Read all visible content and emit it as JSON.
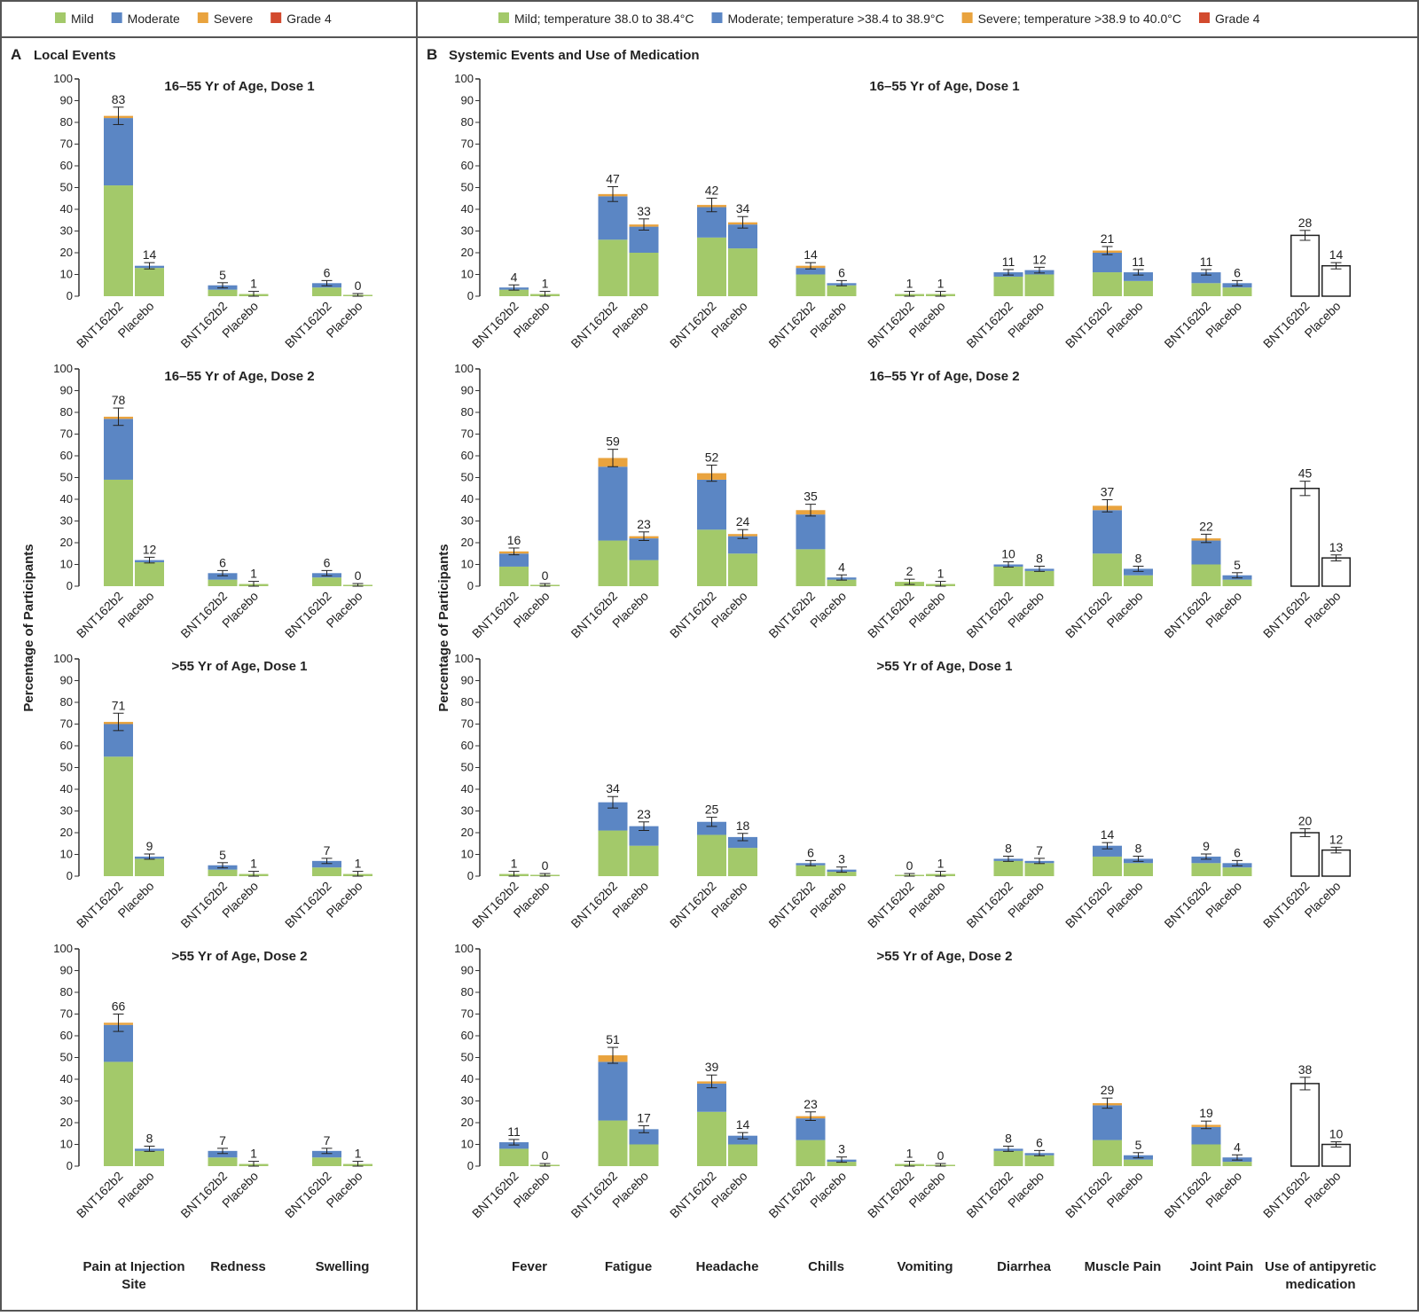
{
  "legend_a": [
    {
      "label": "Mild",
      "color": "#a3c96a"
    },
    {
      "label": "Moderate",
      "color": "#5b86c4"
    },
    {
      "label": "Severe",
      "color": "#e9a33e"
    },
    {
      "label": "Grade 4",
      "color": "#d24a2e"
    }
  ],
  "legend_b": [
    {
      "label": "Mild; temperature 38.0 to 38.4°C",
      "color": "#a3c96a"
    },
    {
      "label": "Moderate; temperature >38.4 to 38.9°C",
      "color": "#5b86c4"
    },
    {
      "label": "Severe; temperature >38.9 to 40.0°C",
      "color": "#e9a33e"
    },
    {
      "label": "Grade 4",
      "color": "#d24a2e"
    }
  ],
  "panel_a": {
    "letter": "A",
    "title": "Local Events",
    "ylabel": "Percentage of Participants",
    "categories": [
      "Pain at Injection Site",
      "Redness",
      "Swelling"
    ]
  },
  "panel_b": {
    "letter": "B",
    "title": "Systemic Events and Use of Medication",
    "ylabel": "Percentage of Participants",
    "categories": [
      "Fever",
      "Fatigue",
      "Headache",
      "Chills",
      "Vomiting",
      "Diarrhea",
      "Muscle Pain",
      "Joint Pain",
      "Use of antipyretic medication"
    ]
  },
  "groups": [
    "BNT162b2",
    "Placebo"
  ],
  "chart_data": [
    {
      "panel": "A",
      "type": "bar",
      "stacked": true,
      "title": "16–55 Yr of Age, Dose 1",
      "ylim": [
        0,
        100
      ],
      "yticks": [
        0,
        10,
        20,
        30,
        40,
        50,
        60,
        70,
        80,
        90,
        100
      ],
      "stack_order": [
        "Mild",
        "Moderate",
        "Severe",
        "Grade 4"
      ],
      "stacks": [
        [
          [
            51,
            31,
            1,
            0
          ],
          [
            13,
            1,
            0,
            0
          ]
        ],
        [
          [
            3,
            2,
            0,
            0
          ],
          [
            1,
            0,
            0,
            0
          ]
        ],
        [
          [
            4,
            2,
            0,
            0
          ],
          [
            0,
            0,
            0,
            0
          ]
        ]
      ],
      "totals": [
        [
          83,
          14
        ],
        [
          5,
          1
        ],
        [
          6,
          0
        ]
      ]
    },
    {
      "panel": "A",
      "type": "bar",
      "stacked": true,
      "title": "16–55 Yr of Age, Dose 2",
      "ylim": [
        0,
        100
      ],
      "yticks": [
        0,
        10,
        20,
        30,
        40,
        50,
        60,
        70,
        80,
        90,
        100
      ],
      "stack_order": [
        "Mild",
        "Moderate",
        "Severe",
        "Grade 4"
      ],
      "stacks": [
        [
          [
            49,
            28,
            1,
            0
          ],
          [
            11,
            1,
            0,
            0
          ]
        ],
        [
          [
            3,
            3,
            0,
            0
          ],
          [
            1,
            0,
            0,
            0
          ]
        ],
        [
          [
            4,
            2,
            0,
            0
          ],
          [
            0,
            0,
            0,
            0
          ]
        ]
      ],
      "totals": [
        [
          78,
          12
        ],
        [
          6,
          1
        ],
        [
          6,
          0
        ]
      ]
    },
    {
      "panel": "A",
      "type": "bar",
      "stacked": true,
      "title": ">55 Yr of Age, Dose 1",
      "ylim": [
        0,
        100
      ],
      "yticks": [
        0,
        10,
        20,
        30,
        40,
        50,
        60,
        70,
        80,
        90,
        100
      ],
      "stack_order": [
        "Mild",
        "Moderate",
        "Severe",
        "Grade 4"
      ],
      "stacks": [
        [
          [
            55,
            15,
            1,
            0
          ],
          [
            8,
            1,
            0,
            0
          ]
        ],
        [
          [
            3,
            2,
            0,
            0
          ],
          [
            1,
            0,
            0,
            0
          ]
        ],
        [
          [
            4,
            3,
            0,
            0
          ],
          [
            1,
            0,
            0,
            0
          ]
        ]
      ],
      "totals": [
        [
          71,
          9
        ],
        [
          5,
          1
        ],
        [
          7,
          1
        ]
      ]
    },
    {
      "panel": "A",
      "type": "bar",
      "stacked": true,
      "title": ">55 Yr of Age, Dose 2",
      "ylim": [
        0,
        100
      ],
      "yticks": [
        0,
        10,
        20,
        30,
        40,
        50,
        60,
        70,
        80,
        90,
        100
      ],
      "stack_order": [
        "Mild",
        "Moderate",
        "Severe",
        "Grade 4"
      ],
      "stacks": [
        [
          [
            48,
            17,
            1,
            0
          ],
          [
            7,
            1,
            0,
            0
          ]
        ],
        [
          [
            4,
            3,
            0,
            0
          ],
          [
            1,
            0,
            0,
            0
          ]
        ],
        [
          [
            4,
            3,
            0,
            0
          ],
          [
            1,
            0,
            0,
            0
          ]
        ]
      ],
      "totals": [
        [
          66,
          8
        ],
        [
          7,
          1
        ],
        [
          7,
          1
        ]
      ]
    },
    {
      "panel": "B",
      "type": "bar",
      "stacked": true,
      "title": "16–55 Yr of Age, Dose 1",
      "ylim": [
        0,
        100
      ],
      "yticks": [
        0,
        10,
        20,
        30,
        40,
        50,
        60,
        70,
        80,
        90,
        100
      ],
      "stack_order": [
        "Mild",
        "Moderate",
        "Severe",
        "Grade 4"
      ],
      "stacks": [
        [
          [
            3,
            1,
            0,
            0
          ],
          [
            1,
            0,
            0,
            0
          ]
        ],
        [
          [
            26,
            20,
            1,
            0
          ],
          [
            20,
            12,
            1,
            0
          ]
        ],
        [
          [
            27,
            14,
            1,
            0
          ],
          [
            22,
            11,
            1,
            0
          ]
        ],
        [
          [
            10,
            3,
            1,
            0
          ],
          [
            5,
            1,
            0,
            0
          ]
        ],
        [
          [
            1,
            0,
            0,
            0
          ],
          [
            1,
            0,
            0,
            0
          ]
        ],
        [
          [
            9,
            2,
            0,
            0
          ],
          [
            10,
            2,
            0,
            0
          ]
        ],
        [
          [
            11,
            9,
            1,
            0
          ],
          [
            7,
            4,
            0,
            0
          ]
        ],
        [
          [
            6,
            5,
            0,
            0
          ],
          [
            4,
            2,
            0,
            0
          ]
        ],
        null
      ],
      "totals": [
        [
          4,
          1
        ],
        [
          47,
          33
        ],
        [
          42,
          34
        ],
        [
          14,
          6
        ],
        [
          1,
          1
        ],
        [
          11,
          12
        ],
        [
          21,
          11
        ],
        [
          11,
          6
        ],
        [
          28,
          14
        ]
      ]
    },
    {
      "panel": "B",
      "type": "bar",
      "stacked": true,
      "title": "16–55 Yr of Age, Dose 2",
      "ylim": [
        0,
        100
      ],
      "yticks": [
        0,
        10,
        20,
        30,
        40,
        50,
        60,
        70,
        80,
        90,
        100
      ],
      "stack_order": [
        "Mild",
        "Moderate",
        "Severe",
        "Grade 4"
      ],
      "stacks": [
        [
          [
            9,
            6,
            1,
            0
          ],
          [
            0,
            0,
            0,
            0
          ]
        ],
        [
          [
            21,
            34,
            4,
            0
          ],
          [
            12,
            10,
            1,
            0
          ]
        ],
        [
          [
            26,
            23,
            3,
            0
          ],
          [
            15,
            8,
            1,
            0
          ]
        ],
        [
          [
            17,
            16,
            2,
            0
          ],
          [
            3,
            1,
            0,
            0
          ]
        ],
        [
          [
            2,
            0,
            0,
            0
          ],
          [
            1,
            0,
            0,
            0
          ]
        ],
        [
          [
            9,
            1,
            0,
            0
          ],
          [
            7,
            1,
            0,
            0
          ]
        ],
        [
          [
            15,
            20,
            2,
            0
          ],
          [
            5,
            3,
            0,
            0
          ]
        ],
        [
          [
            10,
            11,
            1,
            0
          ],
          [
            3,
            2,
            0,
            0
          ]
        ],
        null
      ],
      "totals": [
        [
          16,
          0
        ],
        [
          59,
          23
        ],
        [
          52,
          24
        ],
        [
          35,
          4
        ],
        [
          2,
          1
        ],
        [
          10,
          8
        ],
        [
          37,
          8
        ],
        [
          22,
          5
        ],
        [
          45,
          13
        ]
      ]
    },
    {
      "panel": "B",
      "type": "bar",
      "stacked": true,
      "title": ">55 Yr of Age, Dose 1",
      "ylim": [
        0,
        100
      ],
      "yticks": [
        0,
        10,
        20,
        30,
        40,
        50,
        60,
        70,
        80,
        90,
        100
      ],
      "stack_order": [
        "Mild",
        "Moderate",
        "Severe",
        "Grade 4"
      ],
      "stacks": [
        [
          [
            1,
            0,
            0,
            0
          ],
          [
            0,
            0,
            0,
            0
          ]
        ],
        [
          [
            21,
            13,
            0,
            0
          ],
          [
            14,
            9,
            0,
            0
          ]
        ],
        [
          [
            19,
            6,
            0,
            0
          ],
          [
            13,
            5,
            0,
            0
          ]
        ],
        [
          [
            5,
            1,
            0,
            0
          ],
          [
            2,
            1,
            0,
            0
          ]
        ],
        [
          [
            0,
            0,
            0,
            0
          ],
          [
            1,
            0,
            0,
            0
          ]
        ],
        [
          [
            7,
            1,
            0,
            0
          ],
          [
            6,
            1,
            0,
            0
          ]
        ],
        [
          [
            9,
            5,
            0,
            0
          ],
          [
            6,
            2,
            0,
            0
          ]
        ],
        [
          [
            6,
            3,
            0,
            0
          ],
          [
            4,
            2,
            0,
            0
          ]
        ],
        null
      ],
      "totals": [
        [
          1,
          0
        ],
        [
          34,
          23
        ],
        [
          25,
          18
        ],
        [
          6,
          3
        ],
        [
          0,
          1
        ],
        [
          8,
          7
        ],
        [
          14,
          8
        ],
        [
          9,
          6
        ],
        [
          20,
          12
        ]
      ]
    },
    {
      "panel": "B",
      "type": "bar",
      "stacked": true,
      "title": ">55 Yr of Age, Dose 2",
      "ylim": [
        0,
        100
      ],
      "yticks": [
        0,
        10,
        20,
        30,
        40,
        50,
        60,
        70,
        80,
        90,
        100
      ],
      "stack_order": [
        "Mild",
        "Moderate",
        "Severe",
        "Grade 4"
      ],
      "stacks": [
        [
          [
            8,
            3,
            0,
            0
          ],
          [
            0,
            0,
            0,
            0
          ]
        ],
        [
          [
            21,
            27,
            3,
            0
          ],
          [
            10,
            7,
            0,
            0
          ]
        ],
        [
          [
            25,
            13,
            1,
            0
          ],
          [
            10,
            4,
            0,
            0
          ]
        ],
        [
          [
            12,
            10,
            1,
            0
          ],
          [
            2,
            1,
            0,
            0
          ]
        ],
        [
          [
            1,
            0,
            0,
            0
          ],
          [
            0,
            0,
            0,
            0
          ]
        ],
        [
          [
            7,
            1,
            0,
            0
          ],
          [
            5,
            1,
            0,
            0
          ]
        ],
        [
          [
            12,
            16,
            1,
            0
          ],
          [
            3,
            2,
            0,
            0
          ]
        ],
        [
          [
            10,
            8,
            1,
            0
          ],
          [
            2,
            2,
            0,
            0
          ]
        ],
        null
      ],
      "totals": [
        [
          11,
          0
        ],
        [
          51,
          17
        ],
        [
          39,
          14
        ],
        [
          23,
          3
        ],
        [
          1,
          0
        ],
        [
          8,
          6
        ],
        [
          29,
          5
        ],
        [
          19,
          4
        ],
        [
          38,
          10
        ]
      ]
    }
  ]
}
